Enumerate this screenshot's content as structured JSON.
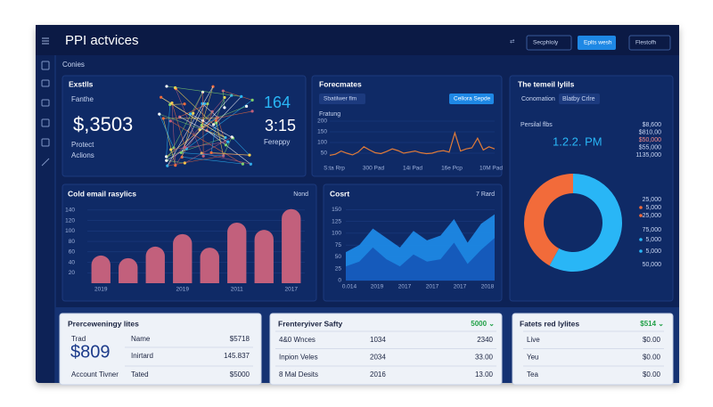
{
  "app": {
    "title": "PPI actvices",
    "breadcrumb": "Conies",
    "buttons": [
      "Secphloly",
      "Eplts wesh",
      "Flestofh"
    ]
  },
  "stats_card": {
    "title": "Exstlls",
    "label": "Fanthe",
    "value": "$,3503",
    "line1": "Protect",
    "line2": "Aclions",
    "count": "164",
    "time": "3:15",
    "caption": "Fereppy"
  },
  "forecast": {
    "title": "Forecmates",
    "pill": "Sbatilwer flm",
    "button": "Cellora Sepde",
    "label": "Fratung",
    "color": "#e07b39",
    "ylim": [
      0,
      200
    ],
    "yticks": [
      50,
      100,
      150,
      200
    ],
    "x_labels": [
      "S:ta Rrp",
      "300 Pad",
      "14i Pad",
      "16e Pcp",
      "10M Pad"
    ],
    "values": [
      40,
      45,
      60,
      50,
      42,
      55,
      80,
      65,
      52,
      48,
      58,
      70,
      62,
      50,
      55,
      60,
      52,
      48,
      50,
      58,
      62,
      55,
      145,
      60,
      70,
      75,
      120,
      65,
      80,
      70
    ]
  },
  "summary": {
    "title": "The temeil lylils",
    "tab1": "Conomation",
    "tab2": "Blatby Crlre",
    "label": "Persilal flbs",
    "time": "1.2.2. PM",
    "list": [
      "$8,600",
      "$810,00",
      "$50,000",
      "$55,000",
      "1135,000"
    ],
    "donut": [
      {
        "color": "#29b6f6",
        "value": 58
      },
      {
        "color": "#f26b3a",
        "value": 42
      }
    ],
    "legend": [
      "25,000",
      "5,000",
      "25,000",
      "75,000",
      "5,000",
      "5,000",
      "50,000"
    ]
  },
  "email": {
    "title": "Cold email rasylics",
    "tag": "Nond",
    "color": "#c2607c",
    "ylim": [
      0,
      150
    ],
    "yticks": [
      20,
      40,
      60,
      80,
      100,
      120,
      140
    ],
    "categories": [
      "2019",
      null,
      null,
      "2019",
      null,
      "2011",
      null,
      "2017"
    ],
    "values": [
      53,
      48,
      70,
      94,
      68,
      116,
      102,
      142
    ]
  },
  "cost": {
    "title": "Cosrt",
    "tag": "7 Rard",
    "ylim": [
      0,
      160
    ],
    "yticks": [
      0,
      25,
      50,
      75,
      100,
      125,
      150
    ],
    "x_labels": [
      "0.014",
      "2019",
      "2017",
      "2017",
      "2017",
      "2018"
    ],
    "series": [
      {
        "color": "#1e88e5",
        "values": [
          60,
          75,
          110,
          90,
          70,
          105,
          85,
          95,
          130,
          80,
          120,
          140
        ]
      },
      {
        "color": "#1557b8",
        "values": [
          30,
          40,
          70,
          45,
          30,
          55,
          40,
          45,
          80,
          35,
          65,
          90
        ]
      }
    ]
  },
  "account": {
    "title": "Prerceweningy lites",
    "label": "Trad",
    "value": "$809",
    "footer": "Account Tivner",
    "rows": [
      [
        "Name",
        "$5718"
      ],
      [
        "Inirtard",
        "145.837"
      ],
      [
        "Tated",
        "$5000"
      ]
    ]
  },
  "tables": [
    {
      "title": "Frenteryiver Safty",
      "badge": "5000 ⌄",
      "rows": [
        [
          "4&0 Wnces",
          "1034",
          "2340"
        ],
        [
          "Inpion Veles",
          "2034",
          "33.00"
        ],
        [
          "8 Mal Desits",
          "2016",
          "13.00"
        ]
      ]
    },
    {
      "title": "Fatets red lylites",
      "badge": "$514 ⌄",
      "rows": [
        [
          "Live",
          "$0.00"
        ],
        [
          "Yeu",
          "$0.00"
        ],
        [
          "Tea",
          "$0.00"
        ]
      ]
    }
  ]
}
